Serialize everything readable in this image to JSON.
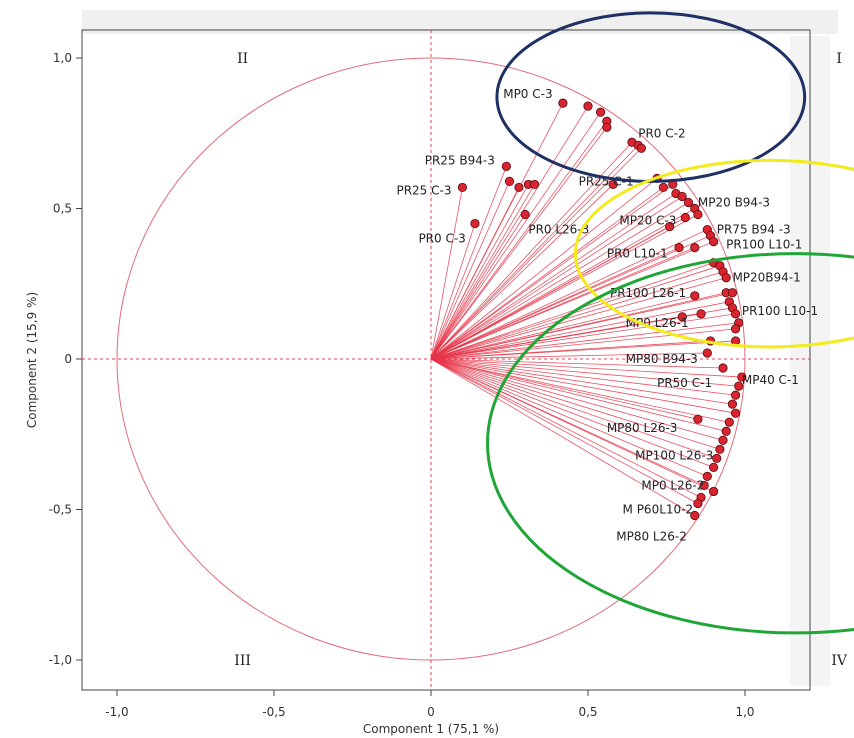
{
  "chart_data": {
    "type": "scatter",
    "title": "",
    "xlabel": "Component 1  (75,1 %)",
    "ylabel": "Component 2  (15,9 %)",
    "xlim": [
      -1.2,
      1.2
    ],
    "ylim": [
      -1.1,
      1.1
    ],
    "x_ticks": [
      -1.0,
      -0.5,
      0,
      0.5,
      1.0
    ],
    "x_tick_labels": [
      "-1,0",
      "-0,5",
      "0",
      "0,5",
      "1,0"
    ],
    "y_ticks": [
      -1.0,
      -0.5,
      0,
      0.5,
      1.0
    ],
    "y_tick_labels": [
      "-1,0",
      "-0,5",
      "0",
      "0,5",
      "1,0"
    ],
    "unit_circle": true,
    "grid": false,
    "quadrant_labels": [
      {
        "text": "II",
        "x": -0.6,
        "y": 1.0
      },
      {
        "text": "I",
        "x": 1.3,
        "y": 1.0
      },
      {
        "text": "III",
        "x": -0.6,
        "y": -1.0
      },
      {
        "text": "IV",
        "x": 1.3,
        "y": -1.0
      }
    ],
    "highlight_circles": [
      {
        "color": "#1f3064",
        "cx": 0.7,
        "cy": 0.87,
        "rx": 0.49,
        "ry": 0.28
      },
      {
        "color": "#f2ec1c",
        "cx": 1.08,
        "cy": 0.35,
        "rx": 0.62,
        "ry": 0.31
      },
      {
        "color": "#1fa637",
        "cx": 1.16,
        "cy": -0.28,
        "rx": 0.98,
        "ry": 0.63
      }
    ],
    "points": [
      {
        "x": 0.42,
        "y": 0.85
      },
      {
        "x": 0.5,
        "y": 0.84
      },
      {
        "x": 0.54,
        "y": 0.82
      },
      {
        "x": 0.56,
        "y": 0.79
      },
      {
        "x": 0.56,
        "y": 0.77
      },
      {
        "x": 0.64,
        "y": 0.72
      },
      {
        "x": 0.66,
        "y": 0.71
      },
      {
        "x": 0.67,
        "y": 0.7
      },
      {
        "x": 0.24,
        "y": 0.64
      },
      {
        "x": 0.25,
        "y": 0.59
      },
      {
        "x": 0.28,
        "y": 0.57
      },
      {
        "x": 0.31,
        "y": 0.58
      },
      {
        "x": 0.33,
        "y": 0.58
      },
      {
        "x": 0.1,
        "y": 0.57
      },
      {
        "x": 0.14,
        "y": 0.45
      },
      {
        "x": 0.3,
        "y": 0.48
      },
      {
        "x": 0.58,
        "y": 0.58
      },
      {
        "x": 0.72,
        "y": 0.6
      },
      {
        "x": 0.74,
        "y": 0.57
      },
      {
        "x": 0.77,
        "y": 0.58
      },
      {
        "x": 0.78,
        "y": 0.55
      },
      {
        "x": 0.8,
        "y": 0.54
      },
      {
        "x": 0.82,
        "y": 0.52
      },
      {
        "x": 0.84,
        "y": 0.5
      },
      {
        "x": 0.85,
        "y": 0.48
      },
      {
        "x": 0.76,
        "y": 0.44
      },
      {
        "x": 0.81,
        "y": 0.47
      },
      {
        "x": 0.88,
        "y": 0.43
      },
      {
        "x": 0.89,
        "y": 0.41
      },
      {
        "x": 0.9,
        "y": 0.39
      },
      {
        "x": 0.84,
        "y": 0.37
      },
      {
        "x": 0.79,
        "y": 0.37
      },
      {
        "x": 0.9,
        "y": 0.32
      },
      {
        "x": 0.92,
        "y": 0.31
      },
      {
        "x": 0.93,
        "y": 0.29
      },
      {
        "x": 0.94,
        "y": 0.27
      },
      {
        "x": 0.94,
        "y": 0.22
      },
      {
        "x": 0.96,
        "y": 0.22
      },
      {
        "x": 0.84,
        "y": 0.21
      },
      {
        "x": 0.95,
        "y": 0.19
      },
      {
        "x": 0.96,
        "y": 0.17
      },
      {
        "x": 0.97,
        "y": 0.15
      },
      {
        "x": 0.98,
        "y": 0.12
      },
      {
        "x": 0.97,
        "y": 0.1
      },
      {
        "x": 0.86,
        "y": 0.15
      },
      {
        "x": 0.8,
        "y": 0.14
      },
      {
        "x": 0.97,
        "y": 0.06
      },
      {
        "x": 0.89,
        "y": 0.06
      },
      {
        "x": 0.88,
        "y": 0.02
      },
      {
        "x": 0.93,
        "y": -0.03
      },
      {
        "x": 0.99,
        "y": -0.06
      },
      {
        "x": 0.98,
        "y": -0.09
      },
      {
        "x": 0.97,
        "y": -0.12
      },
      {
        "x": 0.96,
        "y": -0.15
      },
      {
        "x": 0.97,
        "y": -0.18
      },
      {
        "x": 0.95,
        "y": -0.21
      },
      {
        "x": 0.94,
        "y": -0.24
      },
      {
        "x": 0.85,
        "y": -0.2
      },
      {
        "x": 0.93,
        "y": -0.27
      },
      {
        "x": 0.92,
        "y": -0.3
      },
      {
        "x": 0.91,
        "y": -0.33
      },
      {
        "x": 0.9,
        "y": -0.36
      },
      {
        "x": 0.88,
        "y": -0.39
      },
      {
        "x": 0.87,
        "y": -0.42
      },
      {
        "x": 0.9,
        "y": -0.44
      },
      {
        "x": 0.86,
        "y": -0.46
      },
      {
        "x": 0.85,
        "y": -0.48
      },
      {
        "x": 0.84,
        "y": -0.52
      }
    ],
    "labels": [
      {
        "text": "MP0 C-3",
        "x": 0.23,
        "y": 0.88
      },
      {
        "text": "PR0 C-2",
        "x": 0.66,
        "y": 0.75
      },
      {
        "text": "PR25 B94-3",
        "x": -0.02,
        "y": 0.66
      },
      {
        "text": "PR25 C-3",
        "x": -0.11,
        "y": 0.56
      },
      {
        "text": "PR0 C-3",
        "x": -0.04,
        "y": 0.4
      },
      {
        "text": "PR0 L26-3",
        "x": 0.31,
        "y": 0.43
      },
      {
        "text": "PR25 C-1",
        "x": 0.47,
        "y": 0.59
      },
      {
        "text": "MP20 B94-3",
        "x": 0.85,
        "y": 0.52
      },
      {
        "text": "MP20 C-3",
        "x": 0.6,
        "y": 0.46
      },
      {
        "text": "PR75 B94 -3",
        "x": 0.91,
        "y": 0.43
      },
      {
        "text": "PR100 L10-1",
        "x": 0.94,
        "y": 0.38
      },
      {
        "text": "PR0 L10-1",
        "x": 0.56,
        "y": 0.35
      },
      {
        "text": "MP20B94-1",
        "x": 0.96,
        "y": 0.27
      },
      {
        "text": "PR100 L26-1",
        "x": 0.57,
        "y": 0.22
      },
      {
        "text": "PR100 L10-1",
        "x": 0.99,
        "y": 0.16
      },
      {
        "text": "MP0 L26-1",
        "x": 0.62,
        "y": 0.12
      },
      {
        "text": "MP80 B94-3",
        "x": 0.62,
        "y": 0.0
      },
      {
        "text": "MP40 C-1",
        "x": 0.99,
        "y": -0.07
      },
      {
        "text": "PR50 C-1",
        "x": 0.72,
        "y": -0.08
      },
      {
        "text": "MP80 L26-3",
        "x": 0.56,
        "y": -0.23
      },
      {
        "text": "MP100 L26-3",
        "x": 0.65,
        "y": -0.32
      },
      {
        "text": "MP0 L26-2",
        "x": 0.67,
        "y": -0.42
      },
      {
        "text": "M P60L10-2",
        "x": 0.61,
        "y": -0.5
      },
      {
        "text": "MP80 L26-2",
        "x": 0.59,
        "y": -0.59
      }
    ]
  }
}
